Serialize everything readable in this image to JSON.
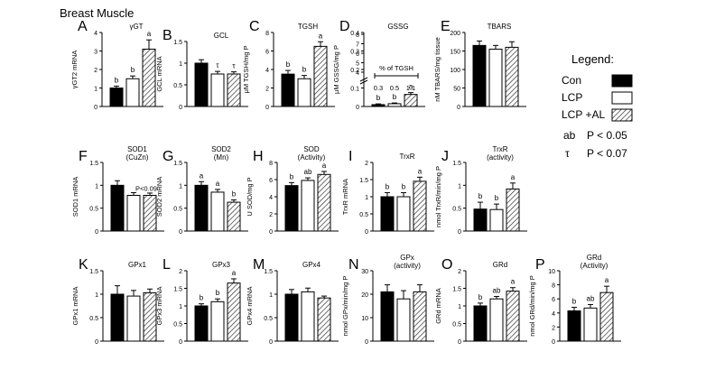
{
  "figure_title": "Breast Muscle",
  "legend": {
    "title": "Legend:",
    "groups": [
      "Con",
      "LCP",
      "LCP +AL"
    ],
    "notes": [
      {
        "symbol": "ab",
        "text": "P < 0.05"
      },
      {
        "symbol": "τ",
        "text": "P < 0.07"
      }
    ]
  },
  "chart_data": [
    {
      "letter": "A",
      "type": "bar",
      "title": "γGT",
      "ylabel": "γGT2 mRNA",
      "ylim": [
        0,
        4
      ],
      "ticks": [
        0,
        1,
        2,
        3,
        4
      ],
      "categories": [
        "Con",
        "LCP",
        "LCP +AL"
      ],
      "values": [
        1.0,
        1.5,
        3.1
      ],
      "errors": [
        0.1,
        0.15,
        0.5
      ],
      "sig": [
        "b",
        "b",
        "a"
      ]
    },
    {
      "letter": "B",
      "type": "bar",
      "title": "GCL",
      "ylabel": "GCL mRNA",
      "ylim": [
        0,
        1.5
      ],
      "ticks": [
        0,
        0.5,
        1.0,
        1.5
      ],
      "categories": [
        "Con",
        "LCP",
        "LCP +AL"
      ],
      "values": [
        1.0,
        0.75,
        0.75
      ],
      "errors": [
        0.08,
        0.06,
        0.05
      ],
      "sig": [
        "",
        "τ",
        "τ"
      ]
    },
    {
      "letter": "C",
      "type": "bar",
      "title": "TGSH",
      "ylabel": "μM TGSH/mg P",
      "ylim": [
        0,
        8
      ],
      "ticks": [
        0,
        2,
        4,
        6,
        8
      ],
      "categories": [
        "Con",
        "LCP",
        "LCP +AL"
      ],
      "values": [
        3.5,
        3.0,
        6.5
      ],
      "errors": [
        0.4,
        0.35,
        0.5
      ],
      "sig": [
        "b",
        "b",
        "a"
      ]
    },
    {
      "letter": "D",
      "type": "bar",
      "title": "GSSG",
      "ylabel": "μM GSSG/mg P",
      "ylim": [
        0,
        0.4
      ],
      "ticks": [
        0.0,
        0.1,
        0.2,
        0.3,
        0.4
      ],
      "ticks_upper": [
        4,
        5,
        6,
        7,
        8
      ],
      "categories": [
        "Con",
        "LCP",
        "LCP +AL"
      ],
      "values": [
        0.01,
        0.015,
        0.065
      ],
      "errors": [
        0.004,
        0.004,
        0.01
      ],
      "sig": [
        "b",
        "b",
        "a"
      ],
      "inset_label": "% of TGSH",
      "inset_values": [
        "0.3",
        "0.5",
        "1.1"
      ]
    },
    {
      "letter": "E",
      "type": "bar",
      "title": "TBARS",
      "ylabel": "nM TBARS/mg tissue",
      "ylim": [
        0,
        200
      ],
      "ticks": [
        0,
        50,
        100,
        150,
        200
      ],
      "categories": [
        "Con",
        "LCP",
        "LCP +AL"
      ],
      "values": [
        165,
        155,
        160
      ],
      "errors": [
        12,
        10,
        15
      ],
      "sig": [
        "",
        "",
        ""
      ]
    },
    {
      "letter": "F",
      "type": "bar",
      "title": "SOD1",
      "subtitle": "(CuZn)",
      "ylabel": "SOD1 mRNA",
      "ylim": [
        0,
        1.5
      ],
      "ticks": [
        0,
        0.5,
        1.0,
        1.5
      ],
      "categories": [
        "Con",
        "LCP",
        "LCP +AL"
      ],
      "values": [
        1.0,
        0.78,
        0.78
      ],
      "errors": [
        0.1,
        0.06,
        0.05
      ],
      "sig": [
        "",
        "",
        ""
      ],
      "note": "P<0.09"
    },
    {
      "letter": "G",
      "type": "bar",
      "title": "SOD2",
      "subtitle": "(Mn)",
      "ylabel": "SOD2 mRNA",
      "ylim": [
        0,
        1.5
      ],
      "ticks": [
        0,
        0.5,
        1.0,
        1.5
      ],
      "categories": [
        "Con",
        "LCP",
        "LCP +AL"
      ],
      "values": [
        1.0,
        0.85,
        0.63
      ],
      "errors": [
        0.08,
        0.06,
        0.05
      ],
      "sig": [
        "a",
        "a",
        "b"
      ]
    },
    {
      "letter": "H",
      "type": "bar",
      "title": "SOD",
      "subtitle": "(Activity)",
      "ylabel": "U SOD/mg P",
      "ylim": [
        0,
        8
      ],
      "ticks": [
        0,
        2,
        4,
        6,
        8
      ],
      "categories": [
        "Con",
        "LCP",
        "LCP +AL"
      ],
      "values": [
        5.3,
        5.9,
        6.6
      ],
      "errors": [
        0.35,
        0.3,
        0.35
      ],
      "sig": [
        "b",
        "ab",
        "a"
      ]
    },
    {
      "letter": "I",
      "type": "bar",
      "title": "TrxR",
      "ylabel": "TrxR mRNA",
      "ylim": [
        0,
        2.0
      ],
      "ticks": [
        0,
        0.5,
        1.0,
        1.5,
        2.0
      ],
      "categories": [
        "Con",
        "LCP",
        "LCP +AL"
      ],
      "values": [
        1.0,
        1.0,
        1.45
      ],
      "errors": [
        0.12,
        0.12,
        0.12
      ],
      "sig": [
        "b",
        "b",
        "a"
      ]
    },
    {
      "letter": "J",
      "type": "bar",
      "title": "TrxR",
      "subtitle": "(activity)",
      "ylabel": "nmol TrxR/min/mg P",
      "ylim": [
        0,
        1.5
      ],
      "ticks": [
        0,
        0.5,
        1.0,
        1.5
      ],
      "categories": [
        "Con",
        "LCP",
        "LCP +AL"
      ],
      "values": [
        0.48,
        0.47,
        0.92
      ],
      "errors": [
        0.15,
        0.12,
        0.13
      ],
      "sig": [
        "b",
        "b",
        "a"
      ]
    },
    {
      "letter": "K",
      "type": "bar",
      "title": "GPx1",
      "ylabel": "GPx1 mRNA",
      "ylim": [
        0,
        1.5
      ],
      "ticks": [
        0,
        0.5,
        1.0,
        1.5
      ],
      "categories": [
        "Con",
        "LCP",
        "LCP +AL"
      ],
      "values": [
        1.0,
        0.96,
        1.03
      ],
      "errors": [
        0.18,
        0.12,
        0.08
      ],
      "sig": [
        "",
        "",
        ""
      ]
    },
    {
      "letter": "L",
      "type": "bar",
      "title": "GPx3",
      "ylabel": "GPx3 mRNA",
      "ylim": [
        0,
        2.0
      ],
      "ticks": [
        0,
        0.5,
        1.0,
        1.5,
        2.0
      ],
      "categories": [
        "Con",
        "LCP",
        "LCP +AL"
      ],
      "values": [
        1.0,
        1.12,
        1.65
      ],
      "errors": [
        0.06,
        0.08,
        0.12
      ],
      "sig": [
        "b",
        "b",
        "a"
      ]
    },
    {
      "letter": "M",
      "type": "bar",
      "title": "GPx4",
      "ylabel": "GPx4 mRNA",
      "ylim": [
        0,
        1.5
      ],
      "ticks": [
        0,
        0.5,
        1.0,
        1.5
      ],
      "categories": [
        "Con",
        "LCP",
        "LCP +AL"
      ],
      "values": [
        1.0,
        1.05,
        0.92
      ],
      "errors": [
        0.1,
        0.08,
        0.04
      ],
      "sig": [
        "",
        "",
        ""
      ]
    },
    {
      "letter": "N",
      "type": "bar",
      "title": "GPx",
      "subtitle": "(activity)",
      "ylabel": "nmol GPx/min/mg P",
      "ylim": [
        0,
        30
      ],
      "ticks": [
        0,
        10,
        20,
        30
      ],
      "categories": [
        "Con",
        "LCP",
        "LCP +AL"
      ],
      "values": [
        21,
        18,
        21
      ],
      "errors": [
        3,
        3.5,
        3
      ],
      "sig": [
        "",
        "",
        ""
      ]
    },
    {
      "letter": "O",
      "type": "bar",
      "title": "GRd",
      "ylabel": "GRd mRNA",
      "ylim": [
        0,
        2.0
      ],
      "ticks": [
        0,
        0.5,
        1.0,
        1.5,
        2.0
      ],
      "categories": [
        "Con",
        "LCP",
        "LCP +AL"
      ],
      "values": [
        1.0,
        1.2,
        1.42
      ],
      "errors": [
        0.08,
        0.07,
        0.1
      ],
      "sig": [
        "b",
        "ab",
        "a"
      ]
    },
    {
      "letter": "P",
      "type": "bar",
      "title": "GRd",
      "subtitle": "(Activity)",
      "ylabel": "nmol GRd/min/mg P",
      "ylim": [
        0,
        10
      ],
      "ticks": [
        0,
        2,
        4,
        6,
        8,
        10
      ],
      "categories": [
        "Con",
        "LCP",
        "LCP +AL"
      ],
      "values": [
        4.3,
        4.7,
        6.9
      ],
      "errors": [
        0.5,
        0.5,
        0.9
      ],
      "sig": [
        "b",
        "ab",
        "a"
      ]
    }
  ]
}
